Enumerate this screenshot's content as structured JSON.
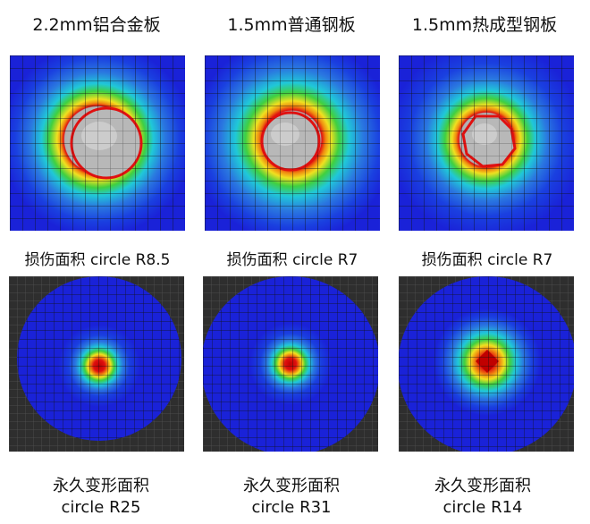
{
  "columns": [
    {
      "title": "2.2mm铝合金板",
      "damage_caption": "损伤面积 circle R8.5",
      "deform_line1": "永久变形面积",
      "deform_line2": "circle R25"
    },
    {
      "title": "1.5mm普通钢板",
      "damage_caption": "损伤面积 circle R7",
      "deform_line1": "永久变形面积",
      "deform_line2": "circle R31"
    },
    {
      "title": "1.5mm热成型钢板",
      "damage_caption": "损伤面积 circle R7",
      "deform_line1": "永久变形面积",
      "deform_line2": "circle R14"
    }
  ],
  "colors": {
    "blue": "#1a22d8",
    "deep_blue": "#0c12c4",
    "background_dark": "#2e2e2e",
    "mesh_line": "#111111",
    "gray_sphere": "#b0b0b0",
    "red": "#e01010",
    "orange": "#f08a10",
    "yellow": "#f0e020",
    "green": "#40d040",
    "cyan": "#20c8d8",
    "light_blue": "#2a78e0"
  }
}
